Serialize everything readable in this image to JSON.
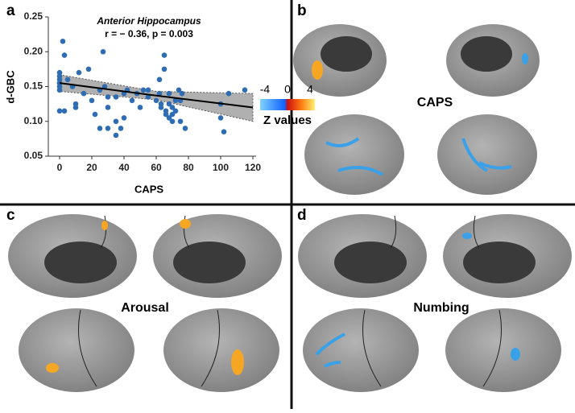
{
  "chart_data": {
    "type": "scatter",
    "title": "Anterior Hippocampus",
    "subtitle": "r = − 0.36, p = 0.003",
    "x_label": "CAPS",
    "y_label": "d-GBC",
    "color": "#2e6db4",
    "x": [
      0,
      0,
      0,
      0,
      0,
      0,
      0,
      0,
      2,
      3,
      3,
      5,
      8,
      10,
      10,
      12,
      15,
      18,
      20,
      22,
      25,
      25,
      27,
      28,
      30,
      30,
      30,
      35,
      35,
      35,
      38,
      40,
      40,
      42,
      45,
      48,
      50,
      52,
      55,
      55,
      60,
      62,
      62,
      63,
      63,
      65,
      65,
      66,
      66,
      68,
      68,
      68,
      70,
      70,
      70,
      72,
      72,
      74,
      75,
      75,
      76,
      78,
      100,
      100,
      102,
      105,
      115
    ],
    "values": [
      0.115,
      0.145,
      0.15,
      0.155,
      0.16,
      0.165,
      0.17,
      0.155,
      0.215,
      0.195,
      0.115,
      0.16,
      0.15,
      0.125,
      0.12,
      0.17,
      0.14,
      0.175,
      0.13,
      0.11,
      0.09,
      0.145,
      0.2,
      0.15,
      0.09,
      0.12,
      0.135,
      0.08,
      0.135,
      0.1,
      0.09,
      0.105,
      0.14,
      0.145,
      0.13,
      0.14,
      0.12,
      0.145,
      0.135,
      0.145,
      0.13,
      0.14,
      0.16,
      0.125,
      0.12,
      0.175,
      0.195,
      0.115,
      0.11,
      0.125,
      0.105,
      0.14,
      0.12,
      0.1,
      0.11,
      0.115,
      0.13,
      0.145,
      0.13,
      0.1,
      0.14,
      0.09,
      0.105,
      0.125,
      0.085,
      0.14,
      0.145
    ],
    "fit": {
      "x": [
        0,
        60,
        120
      ],
      "y": [
        0.155,
        0.137,
        0.12
      ],
      "lower": [
        0.143,
        0.131,
        0.1
      ],
      "upper": [
        0.167,
        0.143,
        0.14
      ]
    },
    "xlim": [
      -7,
      122
    ],
    "ylim": [
      0.05,
      0.25
    ],
    "xticks": [
      0,
      20,
      40,
      60,
      80,
      100,
      120
    ],
    "yticks": [
      0.05,
      {
        "value": 0.1,
        "label": "0.10"
      },
      0.15,
      {
        "value": 0.2,
        "label": "0.20"
      },
      0.25
    ]
  },
  "panel_labels": [
    "a",
    "b",
    "c",
    "d"
  ],
  "colorbar": {
    "title": "Z values",
    "ticks": [
      -4,
      0,
      4
    ]
  },
  "brain_labels": [
    "CAPS",
    "Arousal",
    "Numbing"
  ]
}
